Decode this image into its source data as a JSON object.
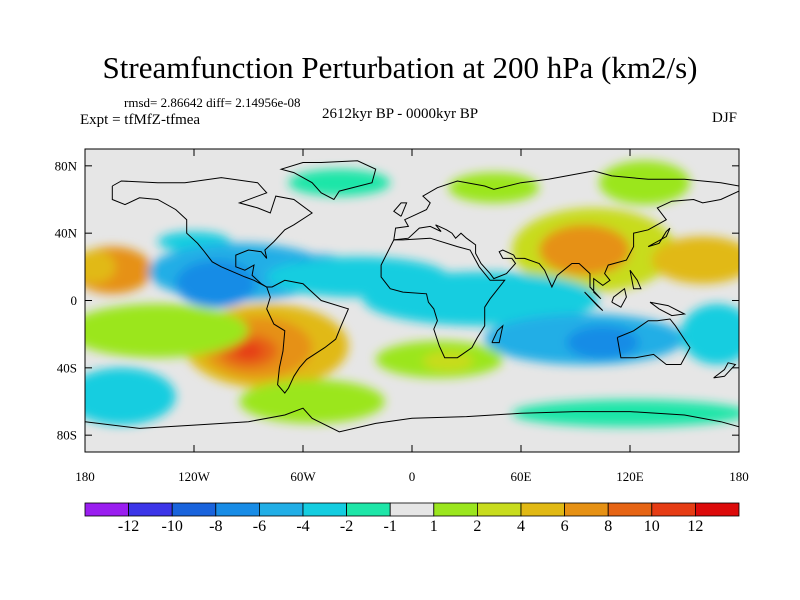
{
  "title": "Streamfunction Perturbation at 200 hPa (km2/s)",
  "stats": "rmsd= 2.86642 diff= 2.14956e-08",
  "experiment": "Expt = tfMfZ-tfmea",
  "period": "2612kyr BP - 0000kyr BP",
  "season": "DJF",
  "axes": {
    "x_ticks": [
      {
        "lon": -180,
        "label": "180"
      },
      {
        "lon": -120,
        "label": "120W"
      },
      {
        "lon": -60,
        "label": "60W"
      },
      {
        "lon": 0,
        "label": "0"
      },
      {
        "lon": 60,
        "label": "60E"
      },
      {
        "lon": 120,
        "label": "120E"
      },
      {
        "lon": 180,
        "label": "180"
      }
    ],
    "y_ticks": [
      {
        "lat": 80,
        "label": "80N"
      },
      {
        "lat": 40,
        "label": "40N"
      },
      {
        "lat": 0,
        "label": "0"
      },
      {
        "lat": -40,
        "label": "40S"
      },
      {
        "lat": -80,
        "label": "80S"
      }
    ],
    "lon_range": [
      -180,
      180
    ],
    "lat_range": [
      -90,
      90
    ]
  },
  "colorbar": {
    "labels": [
      "-12",
      "-10",
      "-8",
      "-6",
      "-4",
      "-2",
      "-1",
      "1",
      "2",
      "4",
      "6",
      "8",
      "10",
      "12"
    ],
    "colors": [
      "#9a1ef0",
      "#3c35e8",
      "#1963dc",
      "#188ce6",
      "#21aee6",
      "#14cde0",
      "#1ee6a8",
      "#e6e6e6",
      "#9be61e",
      "#c8dc1e",
      "#e1b914",
      "#e69114",
      "#e66414",
      "#e63c14",
      "#dc0a0a"
    ]
  },
  "field": {
    "background_color": "#e6e6e6",
    "blobs": [
      {
        "lon": -165,
        "lat": 18,
        "rx": 22,
        "ry": 14,
        "value": 8
      },
      {
        "lon": -175,
        "lat": 20,
        "rx": 12,
        "ry": 10,
        "value": 6
      },
      {
        "lon": -120,
        "lat": 35,
        "rx": 20,
        "ry": 6,
        "value": -2
      },
      {
        "lon": -95,
        "lat": 17,
        "rx": 50,
        "ry": 17,
        "value": -4
      },
      {
        "lon": -108,
        "lat": 10,
        "rx": 22,
        "ry": 14,
        "value": -6
      },
      {
        "lon": -50,
        "lat": 18,
        "rx": 18,
        "ry": 9,
        "value": -6
      },
      {
        "lon": -30,
        "lat": 14,
        "rx": 50,
        "ry": 12,
        "value": -2
      },
      {
        "lon": -40,
        "lat": 70,
        "rx": 28,
        "ry": 8,
        "value": -1
      },
      {
        "lon": 45,
        "lat": 67,
        "rx": 25,
        "ry": 9,
        "value": 2
      },
      {
        "lon": 128,
        "lat": 70,
        "rx": 25,
        "ry": 13,
        "value": 2
      },
      {
        "lon": 100,
        "lat": 30,
        "rx": 45,
        "ry": 25,
        "value": 4
      },
      {
        "lon": 95,
        "lat": 30,
        "rx": 25,
        "ry": 15,
        "value": 8
      },
      {
        "lon": 160,
        "lat": 24,
        "rx": 28,
        "ry": 14,
        "value": 6
      },
      {
        "lon": 38,
        "lat": 1,
        "rx": 65,
        "ry": 16,
        "value": -2
      },
      {
        "lon": 95,
        "lat": -23,
        "rx": 55,
        "ry": 15,
        "value": -4
      },
      {
        "lon": 105,
        "lat": -25,
        "rx": 20,
        "ry": 10,
        "value": -6
      },
      {
        "lon": 168,
        "lat": -20,
        "rx": 20,
        "ry": 18,
        "value": -2
      },
      {
        "lon": -80,
        "lat": -27,
        "rx": 45,
        "ry": 25,
        "value": 6
      },
      {
        "lon": -85,
        "lat": -28,
        "rx": 30,
        "ry": 18,
        "value": 8
      },
      {
        "lon": -90,
        "lat": -30,
        "rx": 16,
        "ry": 10,
        "value": 10
      },
      {
        "lon": -90,
        "lat": -30,
        "rx": 8,
        "ry": 5,
        "value": 12
      },
      {
        "lon": -140,
        "lat": -18,
        "rx": 50,
        "ry": 16,
        "value": 2
      },
      {
        "lon": -55,
        "lat": -60,
        "rx": 40,
        "ry": 13,
        "value": 2
      },
      {
        "lon": 15,
        "lat": -35,
        "rx": 35,
        "ry": 11,
        "value": 2
      },
      {
        "lon": 20,
        "lat": -36,
        "rx": 14,
        "ry": 6,
        "value": 4
      },
      {
        "lon": -160,
        "lat": -57,
        "rx": 30,
        "ry": 17,
        "value": -2
      },
      {
        "lon": 120,
        "lat": -67,
        "rx": 65,
        "ry": 8,
        "value": -1
      }
    ]
  },
  "coastlines": [
    [
      [
        -165,
        68
      ],
      [
        -160,
        71
      ],
      [
        -140,
        70
      ],
      [
        -125,
        70
      ],
      [
        -105,
        73
      ],
      [
        -85,
        70
      ],
      [
        -80,
        64
      ],
      [
        -95,
        58
      ],
      [
        -85,
        55
      ],
      [
        -78,
        52
      ],
      [
        -75,
        62
      ],
      [
        -65,
        60
      ],
      [
        -55,
        52
      ],
      [
        -65,
        45
      ],
      [
        -70,
        42
      ],
      [
        -76,
        35
      ],
      [
        -81,
        30
      ],
      [
        -80,
        25
      ],
      [
        -83,
        29
      ],
      [
        -90,
        30
      ],
      [
        -97,
        27
      ],
      [
        -97,
        20
      ],
      [
        -92,
        18
      ],
      [
        -87,
        21
      ],
      [
        -88,
        15
      ],
      [
        -83,
        10
      ],
      [
        -80,
        8
      ],
      [
        -87,
        12
      ],
      [
        -92,
        14
      ],
      [
        -105,
        20
      ],
      [
        -110,
        23
      ],
      [
        -115,
        30
      ],
      [
        -118,
        34
      ],
      [
        -124,
        40
      ],
      [
        -124,
        48
      ],
      [
        -130,
        54
      ],
      [
        -140,
        60
      ],
      [
        -150,
        61
      ],
      [
        -158,
        57
      ],
      [
        -165,
        60
      ],
      [
        -165,
        68
      ]
    ],
    [
      [
        -80,
        8
      ],
      [
        -77,
        8
      ],
      [
        -70,
        12
      ],
      [
        -60,
        10
      ],
      [
        -50,
        0
      ],
      [
        -35,
        -5
      ],
      [
        -39,
        -15
      ],
      [
        -42,
        -23
      ],
      [
        -48,
        -28
      ],
      [
        -58,
        -35
      ],
      [
        -62,
        -40
      ],
      [
        -65,
        -45
      ],
      [
        -68,
        -52
      ],
      [
        -70,
        -55
      ],
      [
        -74,
        -50
      ],
      [
        -73,
        -40
      ],
      [
        -71,
        -30
      ],
      [
        -70,
        -18
      ],
      [
        -76,
        -14
      ],
      [
        -80,
        -5
      ],
      [
        -78,
        2
      ],
      [
        -80,
        8
      ]
    ],
    [
      [
        -50,
        82
      ],
      [
        -30,
        83
      ],
      [
        -20,
        78
      ],
      [
        -22,
        70
      ],
      [
        -40,
        65
      ],
      [
        -43,
        60
      ],
      [
        -50,
        64
      ],
      [
        -55,
        70
      ],
      [
        -65,
        76
      ],
      [
        -72,
        78
      ],
      [
        -60,
        82
      ],
      [
        -50,
        82
      ]
    ],
    [
      [
        -10,
        36
      ],
      [
        -17,
        21
      ],
      [
        -17,
        14
      ],
      [
        -12,
        7
      ],
      [
        -5,
        5
      ],
      [
        8,
        4
      ],
      [
        9,
        -1
      ],
      [
        12,
        -5
      ],
      [
        14,
        -12
      ],
      [
        12,
        -17
      ],
      [
        15,
        -27
      ],
      [
        18,
        -34
      ],
      [
        25,
        -34
      ],
      [
        33,
        -28
      ],
      [
        36,
        -22
      ],
      [
        40,
        -15
      ],
      [
        40,
        -10
      ],
      [
        40,
        -4
      ],
      [
        43,
        1
      ],
      [
        51,
        12
      ],
      [
        43,
        12
      ],
      [
        37,
        20
      ],
      [
        32,
        30
      ],
      [
        25,
        32
      ],
      [
        10,
        37
      ],
      [
        -5,
        36
      ],
      [
        -10,
        36
      ]
    ],
    [
      [
        -10,
        36
      ],
      [
        -9,
        43
      ],
      [
        -2,
        44
      ],
      [
        -4,
        48
      ],
      [
        2,
        51
      ],
      [
        8,
        54
      ],
      [
        10,
        58
      ],
      [
        6,
        62
      ],
      [
        14,
        67
      ],
      [
        25,
        71
      ],
      [
        40,
        68
      ],
      [
        45,
        66
      ],
      [
        60,
        70
      ],
      [
        75,
        72
      ],
      [
        100,
        77
      ],
      [
        110,
        74
      ],
      [
        130,
        72
      ],
      [
        150,
        72
      ],
      [
        170,
        70
      ],
      [
        180,
        68
      ],
      [
        180,
        65
      ],
      [
        170,
        60
      ],
      [
        160,
        58
      ],
      [
        155,
        60
      ],
      [
        143,
        59
      ],
      [
        135,
        55
      ],
      [
        140,
        48
      ],
      [
        130,
        42
      ],
      [
        122,
        40
      ],
      [
        122,
        32
      ],
      [
        118,
        24
      ],
      [
        108,
        21
      ],
      [
        106,
        16
      ],
      [
        109,
        12
      ],
      [
        105,
        9
      ],
      [
        100,
        13
      ],
      [
        100,
        5
      ],
      [
        104,
        1
      ],
      [
        98,
        8
      ],
      [
        98,
        16
      ],
      [
        92,
        22
      ],
      [
        88,
        22
      ],
      [
        80,
        15
      ],
      [
        77,
        8
      ],
      [
        73,
        18
      ],
      [
        70,
        22
      ],
      [
        62,
        25
      ],
      [
        57,
        25
      ],
      [
        56,
        27
      ],
      [
        50,
        30
      ],
      [
        48,
        29
      ],
      [
        50,
        25
      ],
      [
        55,
        25
      ],
      [
        57,
        22
      ],
      [
        52,
        16
      ],
      [
        45,
        13
      ],
      [
        43,
        16
      ],
      [
        38,
        22
      ],
      [
        35,
        28
      ],
      [
        35,
        33
      ],
      [
        30,
        37
      ],
      [
        27,
        40
      ],
      [
        24,
        37
      ],
      [
        22,
        40
      ],
      [
        19,
        42
      ],
      [
        13,
        45
      ],
      [
        16,
        41
      ],
      [
        10,
        44
      ],
      [
        4,
        43
      ],
      [
        -2,
        37
      ],
      [
        -10,
        36
      ]
    ],
    [
      [
        -6,
        50
      ],
      [
        -3,
        58
      ],
      [
        -6,
        58
      ],
      [
        -10,
        53
      ],
      [
        -6,
        50
      ]
    ],
    [
      [
        113,
        -22
      ],
      [
        115,
        -34
      ],
      [
        123,
        -34
      ],
      [
        133,
        -32
      ],
      [
        140,
        -38
      ],
      [
        148,
        -38
      ],
      [
        153,
        -28
      ],
      [
        145,
        -15
      ],
      [
        142,
        -11
      ],
      [
        135,
        -12
      ],
      [
        130,
        -12
      ],
      [
        122,
        -18
      ],
      [
        113,
        -22
      ]
    ],
    [
      [
        -180,
        -72
      ],
      [
        -150,
        -76
      ],
      [
        -120,
        -74
      ],
      [
        -90,
        -72
      ],
      [
        -70,
        -68
      ],
      [
        -60,
        -64
      ],
      [
        -55,
        -70
      ],
      [
        -40,
        -78
      ],
      [
        -20,
        -73
      ],
      [
        0,
        -70
      ],
      [
        30,
        -69
      ],
      [
        60,
        -67
      ],
      [
        90,
        -66
      ],
      [
        120,
        -66
      ],
      [
        150,
        -68
      ],
      [
        170,
        -72
      ],
      [
        180,
        -75
      ]
    ],
    [
      [
        130,
        32
      ],
      [
        135,
        35
      ],
      [
        140,
        38
      ],
      [
        142,
        43
      ],
      [
        140,
        41
      ],
      [
        136,
        34
      ],
      [
        130,
        32
      ]
    ],
    [
      [
        95,
        5
      ],
      [
        105,
        -6
      ],
      [
        102,
        -3
      ],
      [
        95,
        5
      ]
    ],
    [
      [
        110,
        -1
      ],
      [
        115,
        -4
      ],
      [
        118,
        2
      ],
      [
        117,
        7
      ],
      [
        111,
        2
      ],
      [
        110,
        -1
      ]
    ],
    [
      [
        131,
        -1
      ],
      [
        141,
        -3
      ],
      [
        150,
        -8
      ],
      [
        143,
        -9
      ],
      [
        136,
        -5
      ],
      [
        131,
        -1
      ]
    ],
    [
      [
        44,
        -25
      ],
      [
        47,
        -18
      ],
      [
        50,
        -15
      ],
      [
        48,
        -25
      ],
      [
        44,
        -25
      ]
    ],
    [
      [
        166,
        -46
      ],
      [
        172,
        -41
      ],
      [
        174,
        -37
      ],
      [
        178,
        -38
      ],
      [
        172,
        -45
      ],
      [
        166,
        -46
      ]
    ],
    [
      [
        120,
        18
      ],
      [
        124,
        12
      ],
      [
        126,
        7
      ],
      [
        122,
        7
      ],
      [
        120,
        18
      ]
    ]
  ]
}
